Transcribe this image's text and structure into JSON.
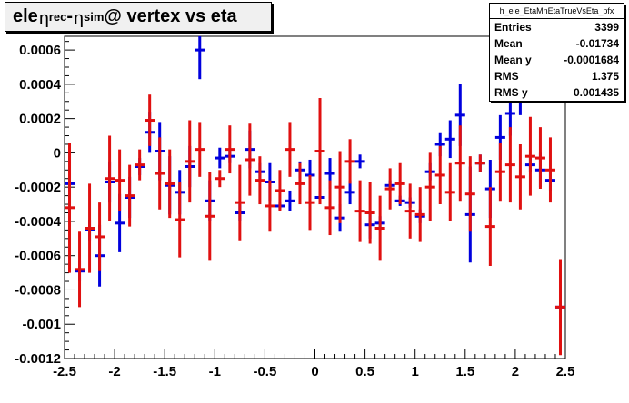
{
  "title": {
    "prefix": "ele ",
    "eta": "η",
    "rec": "rec",
    "minus": " - ",
    "sim": "sim",
    "suffix": " @ vertex vs eta"
  },
  "stats": {
    "name": "h_ele_EtaMnEtaTrueVsEta_pfx",
    "rows": [
      {
        "label": "Entries",
        "value": "3399"
      },
      {
        "label": "Mean",
        "value": "-0.01734"
      },
      {
        "label": "Mean y",
        "value": "-0.0001684"
      },
      {
        "label": "RMS",
        "value": "1.375"
      },
      {
        "label": "RMS y",
        "value": "0.001435"
      }
    ]
  },
  "colors": {
    "blue": "#0000dd",
    "red": "#e01010",
    "axis": "#000000"
  },
  "chart_data": {
    "type": "scatter",
    "xlim": [
      -2.5,
      2.5
    ],
    "ylim": [
      -0.0012,
      0.00068
    ],
    "x_ticks": [
      {
        "v": -2.5,
        "label": "-2.5"
      },
      {
        "v": -2,
        "label": "-2"
      },
      {
        "v": -1.5,
        "label": "-1.5"
      },
      {
        "v": -1,
        "label": "-1"
      },
      {
        "v": -0.5,
        "label": "-0.5"
      },
      {
        "v": 0,
        "label": "0"
      },
      {
        "v": 0.5,
        "label": "0.5"
      },
      {
        "v": 1,
        "label": "1"
      },
      {
        "v": 1.5,
        "label": "1.5"
      },
      {
        "v": 2,
        "label": "2"
      },
      {
        "v": 2.5,
        "label": "2.5"
      }
    ],
    "y_ticks": [
      {
        "v": -0.0012,
        "label": "-0.0012"
      },
      {
        "v": -0.001,
        "label": "-0.001"
      },
      {
        "v": -0.0008,
        "label": "-0.0008"
      },
      {
        "v": -0.0006,
        "label": "-0.0006"
      },
      {
        "v": -0.0004,
        "label": "-0.0004"
      },
      {
        "v": -0.0002,
        "label": "-0.0002"
      },
      {
        "v": 0,
        "label": "0"
      },
      {
        "v": 0.0002,
        "label": "0.0002"
      },
      {
        "v": 0.0004,
        "label": "0.0004"
      },
      {
        "v": 0.0006,
        "label": "0.0006"
      }
    ],
    "series": [
      {
        "color_key": "blue",
        "points": [
          [
            -2.45,
            -0.00018,
            0.00018
          ],
          [
            -2.35,
            -0.00069,
            6e-05
          ],
          [
            -2.25,
            -0.00045,
            6e-05
          ],
          [
            -2.15,
            -0.0006,
            0.00018
          ],
          [
            -2.05,
            -0.00017,
            0.00012
          ],
          [
            -1.95,
            -0.00041,
            0.00017
          ],
          [
            -1.85,
            -0.00026,
            0.00012
          ],
          [
            -1.75,
            -8e-05,
            5e-05
          ],
          [
            -1.65,
            0.00012,
            0.00012
          ],
          [
            -1.55,
            1e-05,
            0.00017
          ],
          [
            -1.45,
            -0.00019,
            0.00017
          ],
          [
            -1.35,
            -0.00023,
            0.00013
          ],
          [
            -1.25,
            -8e-05,
            0.00012
          ],
          [
            -1.15,
            0.0006,
            0.00017
          ],
          [
            -1.05,
            -0.00028,
            0.00012
          ],
          [
            -0.95,
            -3e-05,
            6e-05
          ],
          [
            -0.85,
            -2e-05,
            4e-05
          ],
          [
            -0.75,
            -0.00035,
            5e-05
          ],
          [
            -0.65,
            2e-05,
            0.00011
          ],
          [
            -0.55,
            -0.00011,
            5e-05
          ],
          [
            -0.45,
            -0.00017,
            0.00011
          ],
          [
            -0.35,
            -0.00031,
            2e-05
          ],
          [
            -0.25,
            -0.00028,
            6e-05
          ],
          [
            -0.15,
            -0.0001,
            5e-05
          ],
          [
            -0.05,
            -0.00013,
            9e-05
          ],
          [
            0.05,
            -0.00026,
            4e-05
          ],
          [
            0.15,
            -0.00012,
            9e-05
          ],
          [
            0.25,
            -0.00038,
            8e-05
          ],
          [
            0.35,
            -0.00023,
            7e-05
          ],
          [
            0.45,
            -5e-05,
            4e-05
          ],
          [
            0.55,
            -0.00042,
            8e-05
          ],
          [
            0.65,
            -0.00041,
            4e-05
          ],
          [
            0.75,
            -0.00019,
            3e-05
          ],
          [
            0.85,
            -0.00028,
            3e-05
          ],
          [
            0.95,
            -0.00029,
            3e-05
          ],
          [
            1.05,
            -0.00037,
            4e-05
          ],
          [
            1.15,
            -0.00011,
            5e-05
          ],
          [
            1.25,
            5e-05,
            7e-05
          ],
          [
            1.35,
            8e-05,
            0.00011
          ],
          [
            1.45,
            0.00022,
            0.00018
          ],
          [
            1.55,
            -0.00036,
            0.00028
          ],
          [
            1.65,
            -6e-05,
            5e-05
          ],
          [
            1.75,
            -0.00021,
            0.00017
          ],
          [
            1.85,
            9e-05,
            0.00013
          ],
          [
            1.95,
            0.00023,
            0.00013
          ],
          [
            2.05,
            0.00032,
            0.0001
          ],
          [
            2.15,
            -7e-05,
            4e-05
          ],
          [
            2.25,
            -0.0001,
            0.0001
          ],
          [
            2.35,
            -0.00016,
            6e-05
          ],
          [
            2.45,
            -0.0009,
            0.00012
          ]
        ]
      },
      {
        "color_key": "red",
        "points": [
          [
            -2.45,
            -0.00032,
            0.00038
          ],
          [
            -2.35,
            -0.00068,
            0.00022
          ],
          [
            -2.25,
            -0.00044,
            0.00026
          ],
          [
            -2.15,
            -0.00049,
            0.0002
          ],
          [
            -2.05,
            -0.00015,
            0.00025
          ],
          [
            -1.95,
            -0.00016,
            0.00018
          ],
          [
            -1.85,
            -0.00025,
            0.00018
          ],
          [
            -1.75,
            -7e-05,
            9e-05
          ],
          [
            -1.65,
            0.00019,
            0.00015
          ],
          [
            -1.55,
            -0.00012,
            0.00021
          ],
          [
            -1.45,
            -0.00018,
            0.0002
          ],
          [
            -1.35,
            -0.00039,
            0.00022
          ],
          [
            -1.25,
            -5e-05,
            0.00024
          ],
          [
            -1.15,
            2e-05,
            0.00016
          ],
          [
            -1.05,
            -0.00037,
            0.00026
          ],
          [
            -0.95,
            -0.00015,
            5e-05
          ],
          [
            -0.85,
            2e-05,
            0.00014
          ],
          [
            -0.75,
            -0.00029,
            0.00022
          ],
          [
            -0.65,
            -4e-05,
            0.00021
          ],
          [
            -0.55,
            -0.00016,
            0.00014
          ],
          [
            -0.45,
            -0.00031,
            0.00015
          ],
          [
            -0.35,
            -0.00022,
            0.00012
          ],
          [
            -0.25,
            2e-05,
            0.00016
          ],
          [
            -0.15,
            -0.00018,
            0.00012
          ],
          [
            -0.05,
            -0.00029,
            0.00016
          ],
          [
            0.05,
            1e-05,
            0.00031
          ],
          [
            0.15,
            -0.00032,
            0.00016
          ],
          [
            0.25,
            -0.0002,
            0.00021
          ],
          [
            0.35,
            -5e-05,
            0.00013
          ],
          [
            0.45,
            -0.00034,
            0.00018
          ],
          [
            0.55,
            -0.00035,
            0.00018
          ],
          [
            0.65,
            -0.00044,
            0.00019
          ],
          [
            0.75,
            -0.00021,
            0.00012
          ],
          [
            0.85,
            -0.00018,
            0.00012
          ],
          [
            0.95,
            -0.00034,
            0.00016
          ],
          [
            1.05,
            -0.00036,
            0.00016
          ],
          [
            1.15,
            -0.0002,
            0.0002
          ],
          [
            1.25,
            -0.00013,
            0.00017
          ],
          [
            1.35,
            -0.00023,
            0.00017
          ],
          [
            1.45,
            -6e-05,
            0.00022
          ],
          [
            1.55,
            -0.00024,
            0.00022
          ],
          [
            1.65,
            -6e-05,
            5e-05
          ],
          [
            1.75,
            -0.00043,
            0.00023
          ],
          [
            1.85,
            -0.00011,
            0.00017
          ],
          [
            1.95,
            -7e-05,
            0.00022
          ],
          [
            2.05,
            -0.00014,
            0.00019
          ],
          [
            2.15,
            -2e-05,
            0.00023
          ],
          [
            2.25,
            -3e-05,
            0.00018
          ],
          [
            2.35,
            -0.0001,
            0.00019
          ],
          [
            2.45,
            -0.0009,
            0.00028
          ]
        ]
      }
    ]
  }
}
